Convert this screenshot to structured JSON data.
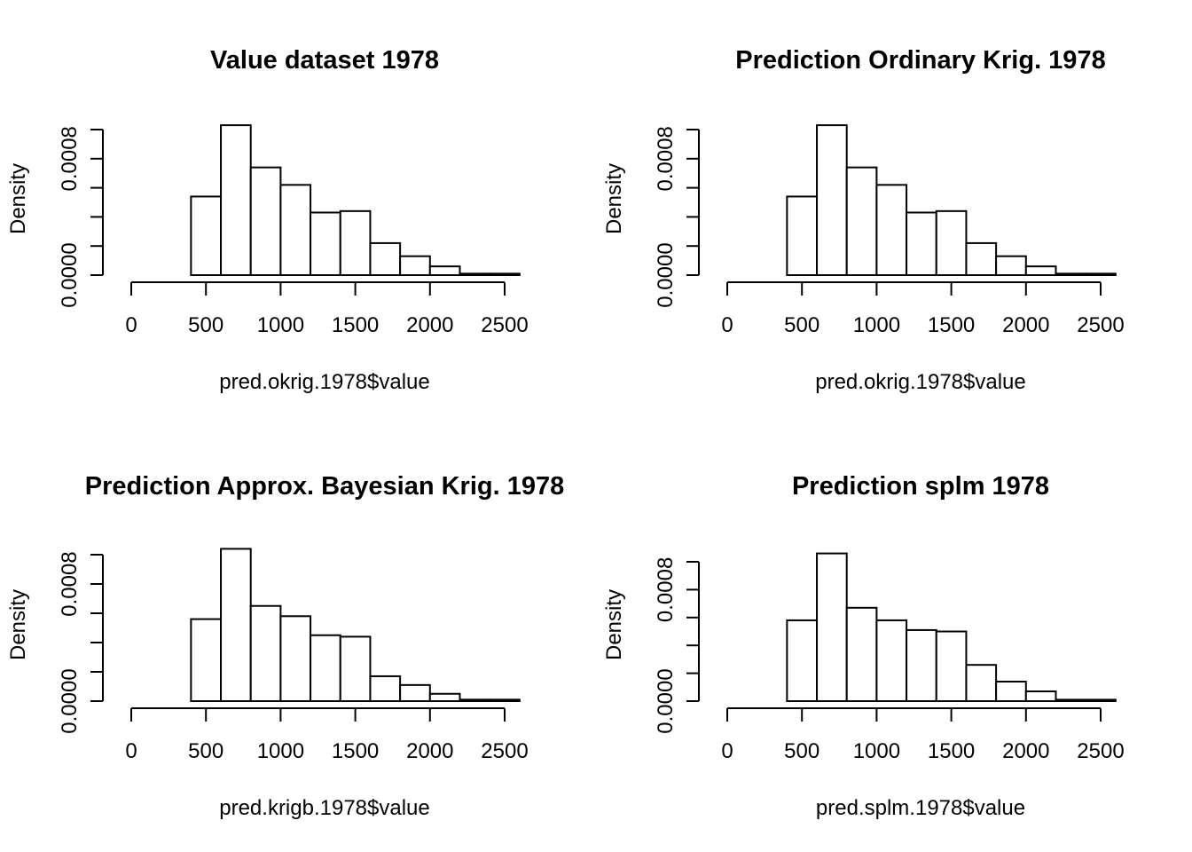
{
  "chart_data": [
    {
      "type": "bar",
      "title": "Value dataset 1978",
      "xlabel": "pred.okrig.1978$value",
      "ylabel": "Density",
      "bin_edges": [
        400,
        600,
        800,
        1000,
        1200,
        1400,
        1600,
        1800,
        2000,
        2200,
        2400,
        2600
      ],
      "values": [
        0.00054,
        0.00103,
        0.00074,
        0.00062,
        0.00043,
        0.00044,
        0.00022,
        0.00013,
        6e-05,
        1e-05,
        1e-05
      ],
      "xlim": [
        0,
        2600
      ],
      "ylim": [
        0,
        0.0012
      ],
      "x_ticks": [
        0,
        500,
        1000,
        1500,
        2000,
        2500
      ],
      "x_tick_labels": [
        "0",
        "500",
        "1000",
        "1500",
        "2000",
        "2500"
      ],
      "y_ticks": [
        0,
        0.0002,
        0.0004,
        0.0006,
        0.0008,
        0.001
      ],
      "y_tick_labels": [
        "0.0000",
        "0.0008"
      ],
      "y_labeled_ticks": [
        0,
        0.0008
      ],
      "grid": false
    },
    {
      "type": "bar",
      "title": "Prediction Ordinary Krig. 1978",
      "xlabel": "pred.okrig.1978$value",
      "ylabel": "Density",
      "bin_edges": [
        400,
        600,
        800,
        1000,
        1200,
        1400,
        1600,
        1800,
        2000,
        2200,
        2400,
        2600
      ],
      "values": [
        0.00054,
        0.00103,
        0.00074,
        0.00062,
        0.00043,
        0.00044,
        0.00022,
        0.00013,
        6e-05,
        1e-05,
        1e-05
      ],
      "xlim": [
        0,
        2600
      ],
      "ylim": [
        0,
        0.0012
      ],
      "x_ticks": [
        0,
        500,
        1000,
        1500,
        2000,
        2500
      ],
      "x_tick_labels": [
        "0",
        "500",
        "1000",
        "1500",
        "2000",
        "2500"
      ],
      "y_ticks": [
        0,
        0.0002,
        0.0004,
        0.0006,
        0.0008,
        0.001
      ],
      "y_tick_labels": [
        "0.0000",
        "0.0008"
      ],
      "y_labeled_ticks": [
        0,
        0.0008
      ],
      "grid": false
    },
    {
      "type": "bar",
      "title": "Prediction Approx. Bayesian Krig. 1978",
      "xlabel": "pred.krigb.1978$value",
      "ylabel": "Density",
      "bin_edges": [
        400,
        600,
        800,
        1000,
        1200,
        1400,
        1600,
        1800,
        2000,
        2200,
        2400,
        2600
      ],
      "values": [
        0.00056,
        0.00104,
        0.00065,
        0.00058,
        0.00045,
        0.00044,
        0.00017,
        0.00011,
        5e-05,
        1e-05,
        1e-05
      ],
      "xlim": [
        0,
        2600
      ],
      "ylim": [
        0,
        0.0012
      ],
      "x_ticks": [
        0,
        500,
        1000,
        1500,
        2000,
        2500
      ],
      "x_tick_labels": [
        "0",
        "500",
        "1000",
        "1500",
        "2000",
        "2500"
      ],
      "y_ticks": [
        0,
        0.0002,
        0.0004,
        0.0006,
        0.0008,
        0.001
      ],
      "y_tick_labels": [
        "0.0000",
        "0.0008"
      ],
      "y_labeled_ticks": [
        0,
        0.0008
      ],
      "grid": false
    },
    {
      "type": "bar",
      "title": "Prediction splm 1978",
      "xlabel": "pred.splm.1978$value",
      "ylabel": "Density",
      "bin_edges": [
        400,
        600,
        800,
        1000,
        1200,
        1400,
        1600,
        1800,
        2000,
        2200,
        2400,
        2600
      ],
      "values": [
        0.00058,
        0.00106,
        0.00067,
        0.00058,
        0.00051,
        0.0005,
        0.00026,
        0.00014,
        7e-05,
        1e-05,
        1e-05
      ],
      "xlim": [
        0,
        2600
      ],
      "ylim": [
        0,
        0.0012
      ],
      "x_ticks": [
        0,
        500,
        1000,
        1500,
        2000,
        2500
      ],
      "x_tick_labels": [
        "0",
        "500",
        "1000",
        "1500",
        "2000",
        "2500"
      ],
      "y_ticks": [
        0,
        0.0002,
        0.0004,
        0.0006,
        0.0008,
        0.001
      ],
      "y_tick_labels": [
        "0.0000",
        "0.0008"
      ],
      "y_labeled_ticks": [
        0,
        0.0008
      ],
      "grid": false
    }
  ]
}
